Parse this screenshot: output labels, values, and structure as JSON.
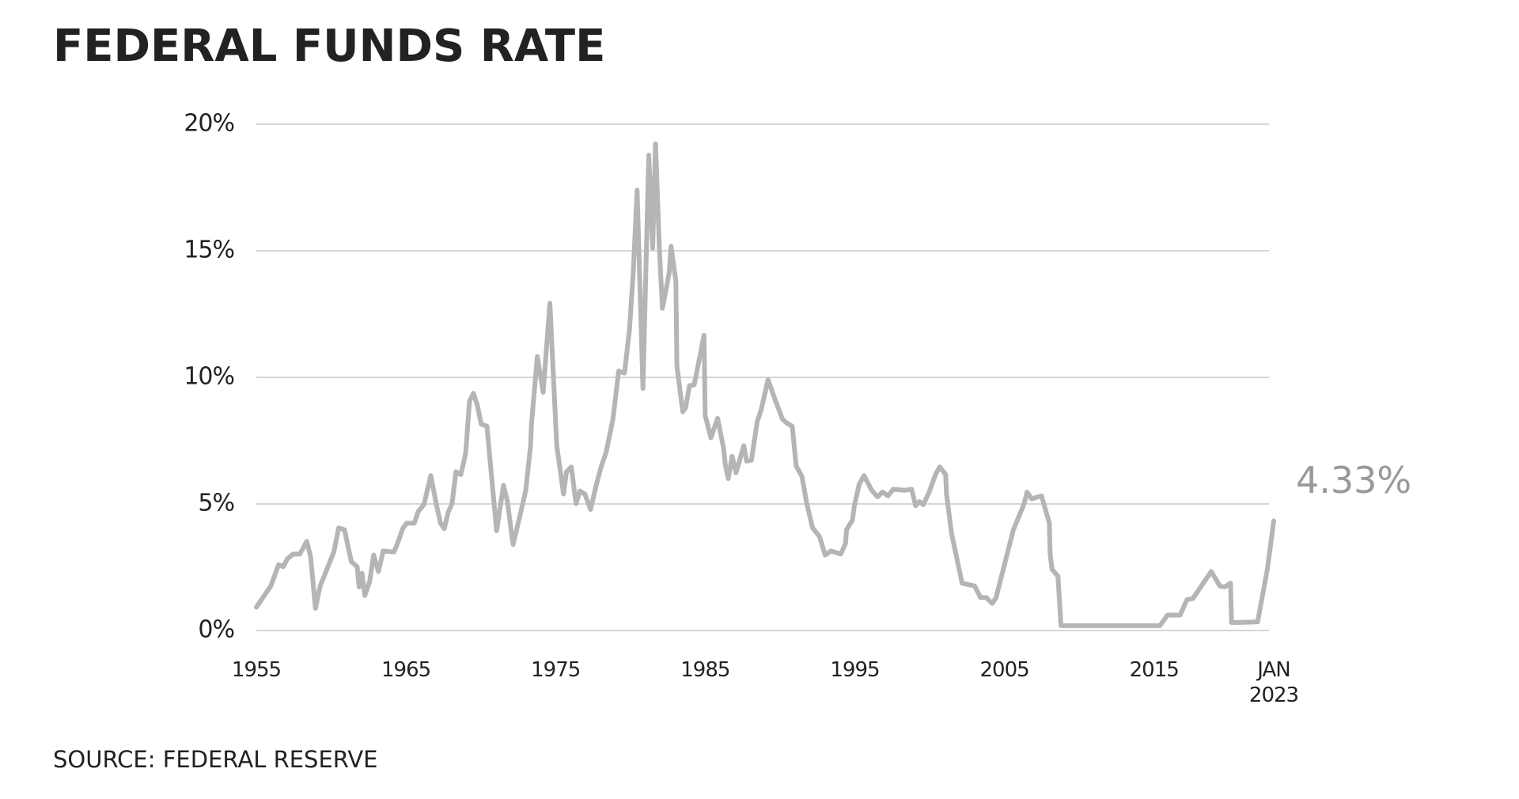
{
  "chart_data": {
    "type": "line",
    "title": "FEDERAL FUNDS RATE",
    "source": "SOURCE: FEDERAL RESERVE",
    "annotation": "4.33%",
    "xlim": [
      1955,
      2023
    ],
    "xticks": [
      1955,
      1965,
      1975,
      1985,
      1995,
      2005,
      2015,
      {
        "value": 2023,
        "label": "JAN 2023"
      }
    ],
    "ylim": [
      0,
      20
    ],
    "yticks": [
      {
        "value": 0,
        "label": "0%"
      },
      {
        "value": 5,
        "label": "5%"
      },
      {
        "value": 10,
        "label": "10%"
      },
      {
        "value": 15,
        "label": "15%"
      },
      {
        "value": 20,
        "label": "20%"
      }
    ],
    "grid": true,
    "series": [
      {
        "color": "#b5b5b5",
        "x": [
          1955.0,
          1955.97,
          1956.49,
          1956.8,
          1957.07,
          1957.46,
          1957.91,
          1958.37,
          1958.63,
          1958.95,
          1959.27,
          1960.18,
          1960.5,
          1960.89,
          1961.35,
          1961.74,
          1961.87,
          1962.06,
          1962.25,
          1962.58,
          1962.84,
          1963.16,
          1963.48,
          1964.2,
          1964.46,
          1964.78,
          1965.04,
          1965.56,
          1965.82,
          1966.2,
          1966.66,
          1967.05,
          1967.31,
          1967.56,
          1967.82,
          1968.08,
          1968.34,
          1968.67,
          1968.99,
          1969.25,
          1969.51,
          1969.77,
          1970.03,
          1970.41,
          1971.06,
          1971.52,
          1971.77,
          1972.16,
          1972.55,
          1973.0,
          1973.33,
          1973.39,
          1973.78,
          1974.17,
          1974.62,
          1975.08,
          1975.53,
          1975.73,
          1976.05,
          1976.37,
          1976.63,
          1976.96,
          1977.34,
          1977.73,
          1978.06,
          1978.38,
          1978.83,
          1979.22,
          1979.61,
          1979.94,
          1980.19,
          1980.45,
          1980.84,
          1981.23,
          1981.49,
          1981.68,
          1981.94,
          1982.14,
          1982.59,
          1982.72,
          1983.04,
          1983.11,
          1983.5,
          1983.69,
          1983.95,
          1984.27,
          1984.92,
          1985.0,
          1985.38,
          1985.83,
          1986.22,
          1986.35,
          1986.54,
          1986.8,
          1987.06,
          1987.58,
          1987.77,
          1988.09,
          1988.48,
          1988.74,
          1989.2,
          1989.71,
          1990.17,
          1990.49,
          1990.82,
          1991.08,
          1991.47,
          1991.79,
          1992.18,
          1992.64,
          1993.02,
          1993.41,
          1994.06,
          1994.38,
          1994.45,
          1994.84,
          1994.97,
          1995.29,
          1995.61,
          1996.13,
          1996.52,
          1996.85,
          1997.23,
          1997.56,
          1998.34,
          1998.8,
          1999.06,
          1999.32,
          1999.58,
          1999.97,
          2000.42,
          2000.68,
          2001.07,
          2001.13,
          2001.46,
          2002.17,
          2003.01,
          2003.4,
          2003.79,
          2004.18,
          2004.44,
          2005.6,
          2006.32,
          2006.51,
          2006.83,
          2007.48,
          2008.0,
          2008.06,
          2008.19,
          2008.58,
          2008.78,
          2015.39,
          2015.9,
          2016.74,
          2017.2,
          2017.59,
          2018.82,
          2019.4,
          2019.72,
          2020.11,
          2020.18,
          2021.92,
          2022.57,
          2023.0
        ],
        "values": [
          0.92,
          1.76,
          2.6,
          2.52,
          2.83,
          3.02,
          3.02,
          3.52,
          2.91,
          0.88,
          1.76,
          3.1,
          4.05,
          3.98,
          2.72,
          2.52,
          1.72,
          2.26,
          1.38,
          1.95,
          2.98,
          2.33,
          3.14,
          3.1,
          3.48,
          4.02,
          4.24,
          4.24,
          4.7,
          4.97,
          6.12,
          4.93,
          4.24,
          4.02,
          4.67,
          5.01,
          6.27,
          6.16,
          7.0,
          9.06,
          9.37,
          8.91,
          8.15,
          8.07,
          3.94,
          5.74,
          5.12,
          3.4,
          4.36,
          5.51,
          7.3,
          8.15,
          10.82,
          9.41,
          12.93,
          7.3,
          5.39,
          6.27,
          6.46,
          5.01,
          5.51,
          5.39,
          4.78,
          5.77,
          6.5,
          7.04,
          8.34,
          10.25,
          10.17,
          11.89,
          14.11,
          17.4,
          9.56,
          18.78,
          15.1,
          19.23,
          15.07,
          12.73,
          14.11,
          15.18,
          13.8,
          10.44,
          8.64,
          8.8,
          9.67,
          9.71,
          11.66,
          8.5,
          7.61,
          8.38,
          7.23,
          6.54,
          6.0,
          6.88,
          6.23,
          7.3,
          6.69,
          6.73,
          8.26,
          8.72,
          9.9,
          9.06,
          8.34,
          8.18,
          8.07,
          6.5,
          6.08,
          5.01,
          4.05,
          3.71,
          2.98,
          3.14,
          3.02,
          3.44,
          3.98,
          4.36,
          4.93,
          5.77,
          6.12,
          5.54,
          5.28,
          5.47,
          5.32,
          5.58,
          5.54,
          5.58,
          4.93,
          5.09,
          4.97,
          5.47,
          6.2,
          6.46,
          6.16,
          5.39,
          3.86,
          1.87,
          1.76,
          1.3,
          1.3,
          1.07,
          1.3,
          3.98,
          5.01,
          5.47,
          5.2,
          5.32,
          4.24,
          2.98,
          2.41,
          2.14,
          0.19,
          0.19,
          0.61,
          0.61,
          1.22,
          1.26,
          2.33,
          1.76,
          1.72,
          1.87,
          0.31,
          0.34,
          2.41,
          4.33
        ]
      }
    ]
  }
}
